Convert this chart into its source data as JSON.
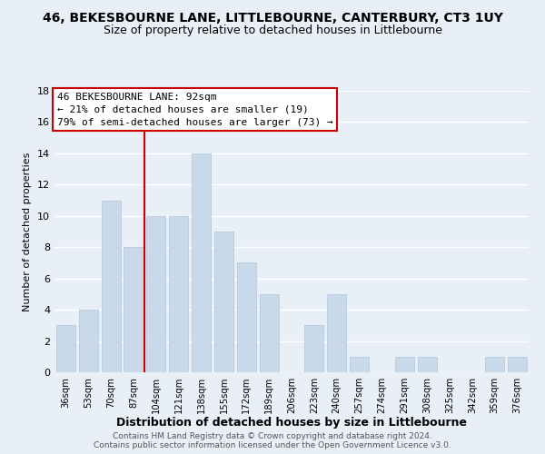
{
  "title": "46, BEKESBOURNE LANE, LITTLEBOURNE, CANTERBURY, CT3 1UY",
  "subtitle": "Size of property relative to detached houses in Littlebourne",
  "xlabel": "Distribution of detached houses by size in Littlebourne",
  "ylabel": "Number of detached properties",
  "bar_color": "#c8d9ea",
  "bar_edge_color": "#b0c4d8",
  "categories": [
    "36sqm",
    "53sqm",
    "70sqm",
    "87sqm",
    "104sqm",
    "121sqm",
    "138sqm",
    "155sqm",
    "172sqm",
    "189sqm",
    "206sqm",
    "223sqm",
    "240sqm",
    "257sqm",
    "274sqm",
    "291sqm",
    "308sqm",
    "325sqm",
    "342sqm",
    "359sqm",
    "376sqm"
  ],
  "values": [
    3,
    4,
    11,
    8,
    10,
    10,
    14,
    9,
    7,
    5,
    0,
    3,
    5,
    1,
    0,
    1,
    1,
    0,
    0,
    1,
    1
  ],
  "ylim": [
    0,
    18
  ],
  "yticks": [
    0,
    2,
    4,
    6,
    8,
    10,
    12,
    14,
    16,
    18
  ],
  "vline_x": 3.5,
  "vline_color": "#cc0000",
  "annotation_line1": "46 BEKESBOURNE LANE: 92sqm",
  "annotation_line2": "← 21% of detached houses are smaller (19)",
  "annotation_line3": "79% of semi-detached houses are larger (73) →",
  "annotation_box_color": "#ffffff",
  "annotation_box_edge": "#cc0000",
  "footer1": "Contains HM Land Registry data © Crown copyright and database right 2024.",
  "footer2": "Contains public sector information licensed under the Open Government Licence v3.0.",
  "background_color": "#e8eff7",
  "grid_color": "#d0dce8"
}
